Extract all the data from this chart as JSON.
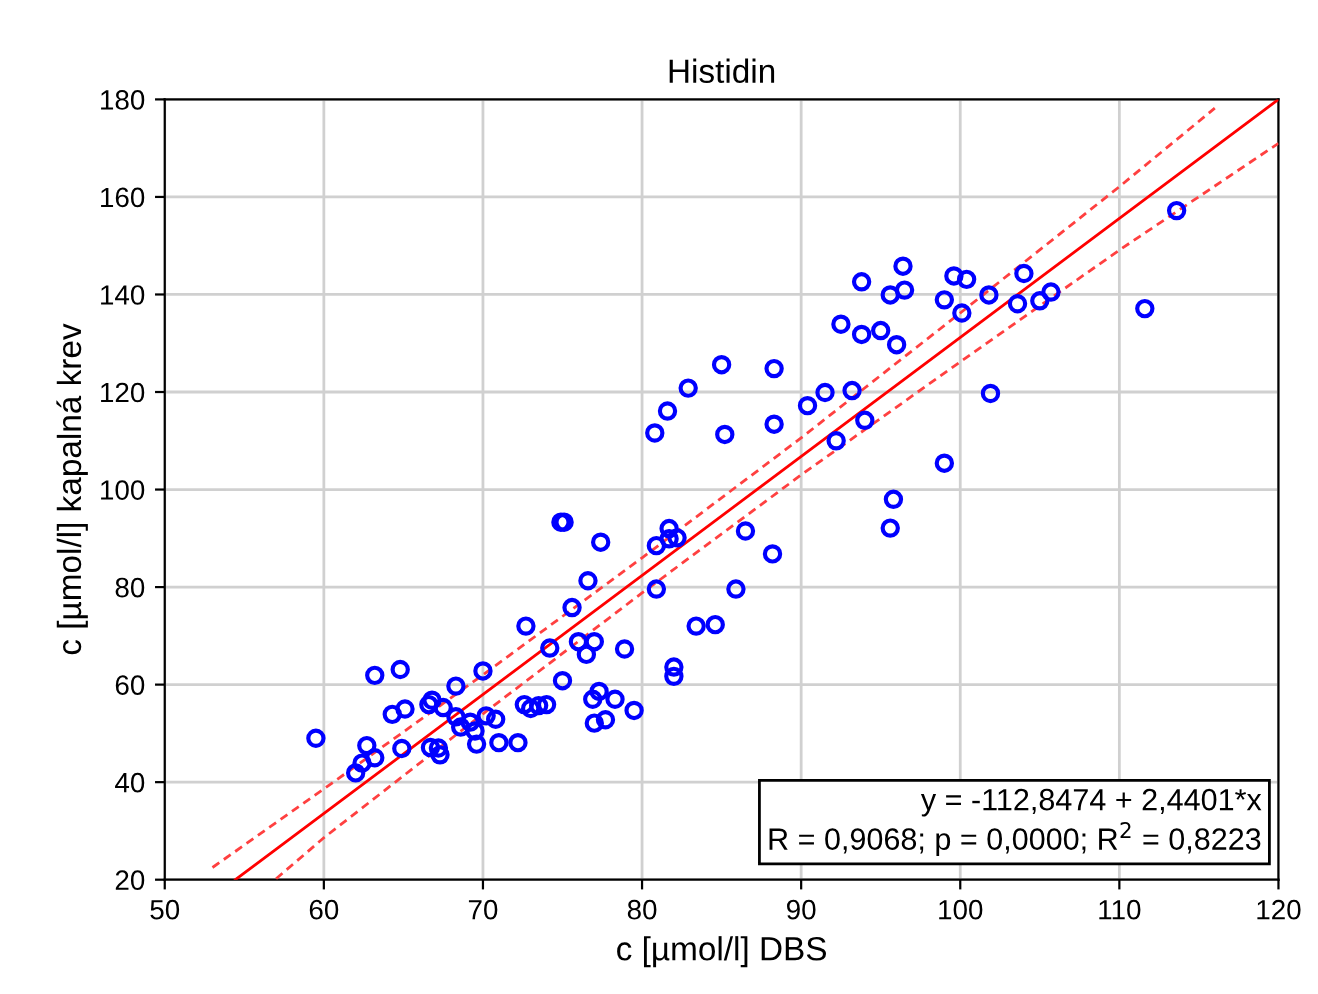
{
  "chart_data": {
    "type": "scatter",
    "title": "Histidin",
    "xlabel": "c [µmol/l] DBS",
    "ylabel": "c [µmol/l] kapalná krev",
    "xlim": [
      50,
      120
    ],
    "xticks": [
      50,
      60,
      70,
      80,
      90,
      100,
      110,
      120
    ],
    "ylim": [
      20,
      180
    ],
    "yticks": [
      20,
      40,
      60,
      80,
      100,
      120,
      140,
      160,
      180
    ],
    "grid": true,
    "legend": false,
    "annotations": [
      "y = -112,8474 + 2,4401*x",
      "R = 0,9068; p = 0,0000; R$^{2}$ = 0,8223"
    ],
    "series": [
      {
        "color": "#0000ff",
        "marker": "circle",
        "x": [
          59.5,
          63.2,
          64.8,
          62.7,
          62.4,
          62.0,
          63.2,
          64.9,
          64.3,
          65.1,
          66.6,
          66.8,
          67.5,
          68.3,
          70.0,
          68.3,
          68.6,
          69.2,
          69.5,
          70.2,
          70.8,
          69.6,
          71.0,
          72.2,
          66.7,
          67.2,
          67.3,
          72.6,
          73.0,
          73.5,
          74.0,
          72.7,
          74.2,
          75.0,
          74.9,
          75.1,
          77.4,
          76.6,
          75.6,
          76.0,
          77.0,
          76.5,
          78.9,
          77.3,
          76.9,
          78.3,
          77.0,
          77.7,
          79.5,
          80.9,
          81.7,
          80.9,
          82.2,
          81.7,
          86.5,
          88.2,
          85.9,
          83.4,
          84.6,
          82.0,
          82.0,
          80.8,
          81.6,
          82.9,
          85.0,
          85.2,
          88.3,
          88.3,
          90.4,
          91.5,
          93.2,
          94.0,
          92.2,
          92.5,
          93.8,
          95.0,
          96.0,
          93.8,
          95.6,
          96.5,
          96.4,
          99.0,
          99.6,
          100.4,
          100.1,
          101.8,
          101.9,
          99.0,
          95.8,
          95.6,
          103.6,
          104.0,
          105.0,
          105.7,
          111.6,
          113.6
        ],
        "values": [
          49.0,
          61.9,
          63.1,
          47.5,
          43.9,
          41.9,
          45.0,
          46.9,
          53.9,
          55.0,
          55.9,
          56.8,
          55.3,
          59.7,
          62.8,
          53.4,
          51.3,
          52.3,
          50.5,
          53.6,
          52.9,
          47.8,
          48.1,
          48.1,
          47.1,
          47.0,
          45.6,
          55.9,
          55.1,
          55.7,
          55.9,
          72.0,
          67.5,
          60.8,
          93.3,
          93.3,
          89.2,
          81.3,
          75.8,
          68.8,
          68.8,
          66.2,
          67.3,
          58.6,
          57.0,
          57.0,
          52.1,
          52.8,
          54.7,
          79.6,
          92.0,
          88.5,
          90.1,
          89.9,
          91.5,
          86.8,
          79.6,
          72.0,
          72.3,
          63.6,
          61.7,
          111.6,
          116.1,
          120.8,
          125.6,
          111.3,
          124.8,
          113.4,
          117.2,
          119.9,
          120.3,
          114.2,
          110.0,
          133.9,
          131.8,
          132.6,
          129.7,
          142.6,
          139.9,
          140.9,
          145.8,
          138.9,
          143.8,
          143.1,
          136.2,
          139.9,
          119.7,
          105.4,
          98.0,
          92.1,
          138.1,
          144.3,
          138.7,
          140.5,
          137.1,
          157.2
        ]
      },
      {
        "type": "line",
        "color": "#ff0000",
        "line_style": "solid",
        "x": [
          54.44,
          120
        ],
        "values": [
          20,
          180
        ]
      },
      {
        "type": "line",
        "color": "#ff4040",
        "line_style": "dashed",
        "x": [
          53,
          60,
          70,
          80,
          90,
          100,
          110,
          116
        ],
        "values": [
          22.5,
          38.6,
          62.0,
          86.0,
          110.6,
          136.2,
          162.1,
          178.2
        ]
      },
      {
        "type": "line",
        "color": "#ff4040",
        "line_style": "dashed",
        "x": [
          57,
          60,
          70,
          80,
          90,
          100,
          110,
          120
        ],
        "values": [
          20.2,
          28.6,
          54.0,
          78.8,
          103.0,
          126.2,
          149.1,
          171.0
        ]
      }
    ]
  }
}
